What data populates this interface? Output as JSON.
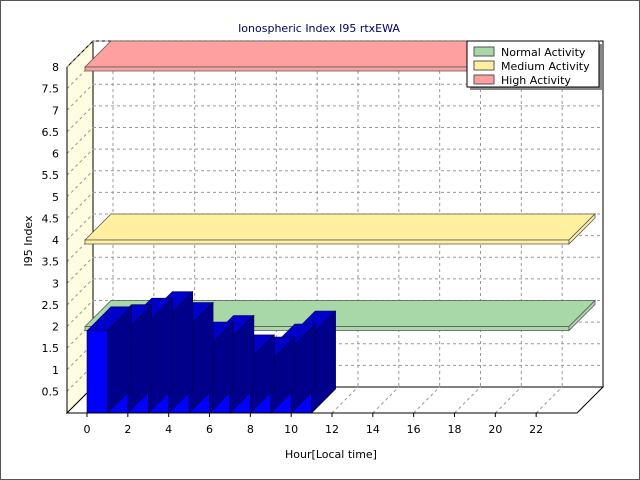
{
  "chart_data": {
    "type": "bar",
    "title": "Ionospheric Index I95 rtxEWA",
    "xlabel": "Hour[Local time]",
    "ylabel": "I95 Index",
    "ylim": [
      0,
      8
    ],
    "y_ticks": [
      "0.5",
      "1",
      "1.5",
      "2",
      "2.5",
      "3",
      "3.5",
      "4",
      "4.5",
      "5",
      "5.5",
      "6",
      "6.5",
      "7",
      "7.5",
      "8"
    ],
    "x_ticks": [
      "0",
      "2",
      "4",
      "6",
      "8",
      "10",
      "12",
      "14",
      "16",
      "18",
      "20",
      "22"
    ],
    "xlim": [
      0,
      24
    ],
    "grid": true,
    "legend_position": "top-right",
    "bar_color": "#0000FF",
    "series": [
      {
        "hours": [
          0,
          1,
          2,
          3,
          4,
          5,
          6,
          7,
          8,
          9,
          10
        ],
        "values": [
          1.9,
          1.95,
          2.1,
          2.25,
          2.0,
          1.55,
          1.7,
          1.25,
          1.2,
          1.5,
          1.8
        ]
      }
    ],
    "bands": [
      {
        "name": "Normal Activity",
        "value": 2.0,
        "color": "#A8D8A8"
      },
      {
        "name": "Medium Activity",
        "value": 4.0,
        "color": "#FFF0A0"
      },
      {
        "name": "High Activity",
        "value": 8.0,
        "color": "#FFA0A0"
      }
    ]
  }
}
